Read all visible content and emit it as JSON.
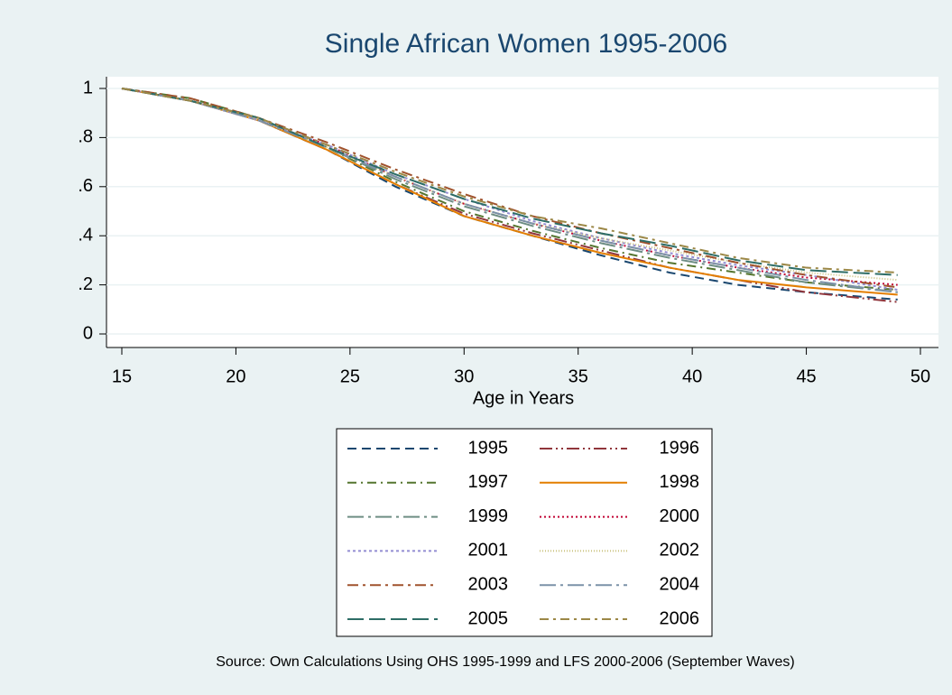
{
  "chart_data": {
    "type": "line",
    "title": "Single African Women 1995-2006",
    "x_label": "Age in Years",
    "note": "Source: Own Calculations Using OHS 1995-1999 and LFS 2000-2006 (September Waves)",
    "x": [
      15,
      18,
      21,
      24,
      27,
      30,
      33,
      36,
      39,
      42,
      45,
      49
    ],
    "xlim": [
      15,
      50
    ],
    "xticks": [
      15,
      20,
      25,
      30,
      35,
      40,
      45,
      50
    ],
    "ylim": [
      0,
      1
    ],
    "yticks": [
      0,
      {
        "value": 0.2,
        "label": ".2"
      },
      {
        "value": 0.4,
        "label": ".4"
      },
      {
        "value": 0.6,
        "label": ".6"
      },
      {
        "value": 0.8,
        "label": ".8"
      },
      1
    ],
    "grid": true,
    "legend": "bottom",
    "series": [
      {
        "name": "1995",
        "color": "#1a476f",
        "dash": "10 6",
        "values": [
          1.0,
          0.95,
          0.87,
          0.75,
          0.6,
          0.48,
          0.4,
          0.32,
          0.25,
          0.2,
          0.17,
          0.14
        ]
      },
      {
        "name": "1996",
        "color": "#90353b",
        "dash": "14 4 2 4 2 4",
        "values": [
          1.0,
          0.95,
          0.87,
          0.75,
          0.61,
          0.49,
          0.41,
          0.34,
          0.27,
          0.22,
          0.17,
          0.13
        ]
      },
      {
        "name": "1997",
        "color": "#55752f",
        "dash": "10 5 2 5",
        "values": [
          1.0,
          0.96,
          0.88,
          0.76,
          0.62,
          0.5,
          0.42,
          0.35,
          0.29,
          0.25,
          0.21,
          0.18
        ]
      },
      {
        "name": "1998",
        "color": "#e37e00",
        "dash": "none",
        "values": [
          1.0,
          0.95,
          0.87,
          0.75,
          0.61,
          0.48,
          0.4,
          0.33,
          0.27,
          0.22,
          0.19,
          0.16
        ]
      },
      {
        "name": "1999",
        "color": "#6e8e84",
        "dash": "18 5 3 5",
        "values": [
          1.0,
          0.95,
          0.87,
          0.76,
          0.63,
          0.52,
          0.44,
          0.37,
          0.31,
          0.26,
          0.21,
          0.17
        ]
      },
      {
        "name": "2000",
        "color": "#c10534",
        "dash": "2 3",
        "values": [
          1.0,
          0.95,
          0.87,
          0.77,
          0.64,
          0.53,
          0.45,
          0.38,
          0.32,
          0.27,
          0.23,
          0.2
        ]
      },
      {
        "name": "2001",
        "color": "#938dd2",
        "dash": "3 3",
        "values": [
          1.0,
          0.95,
          0.87,
          0.77,
          0.65,
          0.55,
          0.46,
          0.39,
          0.33,
          0.28,
          0.24,
          0.18
        ]
      },
      {
        "name": "2002",
        "color": "#cac27e",
        "dash": "1 2",
        "values": [
          1.0,
          0.95,
          0.87,
          0.76,
          0.64,
          0.53,
          0.45,
          0.39,
          0.34,
          0.29,
          0.25,
          0.22
        ]
      },
      {
        "name": "2003",
        "color": "#a0522d",
        "dash": "12 5 3 5",
        "values": [
          1.0,
          0.96,
          0.88,
          0.78,
          0.67,
          0.57,
          0.48,
          0.41,
          0.35,
          0.29,
          0.24,
          0.19
        ]
      },
      {
        "name": "2004",
        "color": "#7b92a8",
        "dash": "18 5 3 5",
        "values": [
          1.0,
          0.95,
          0.87,
          0.76,
          0.64,
          0.53,
          0.45,
          0.38,
          0.32,
          0.27,
          0.22,
          0.17
        ]
      },
      {
        "name": "2005",
        "color": "#2d6d66",
        "dash": "18 6",
        "values": [
          1.0,
          0.95,
          0.88,
          0.76,
          0.65,
          0.55,
          0.47,
          0.41,
          0.36,
          0.3,
          0.26,
          0.24
        ]
      },
      {
        "name": "2006",
        "color": "#9c8847",
        "dash": "10 5 3 5",
        "values": [
          1.0,
          0.95,
          0.88,
          0.77,
          0.66,
          0.56,
          0.48,
          0.43,
          0.37,
          0.31,
          0.27,
          0.25
        ]
      }
    ]
  }
}
